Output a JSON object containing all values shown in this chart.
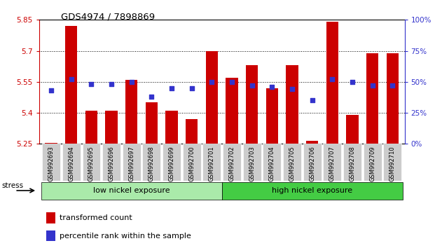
{
  "title": "GDS4974 / 7898869",
  "samples": [
    "GSM992693",
    "GSM992694",
    "GSM992695",
    "GSM992696",
    "GSM992697",
    "GSM992698",
    "GSM992699",
    "GSM992700",
    "GSM992701",
    "GSM992702",
    "GSM992703",
    "GSM992704",
    "GSM992705",
    "GSM992706",
    "GSM992707",
    "GSM992708",
    "GSM992709",
    "GSM992710"
  ],
  "transformed_count": [
    5.255,
    5.82,
    5.41,
    5.41,
    5.56,
    5.45,
    5.41,
    5.37,
    5.7,
    5.57,
    5.63,
    5.52,
    5.63,
    5.265,
    5.84,
    5.39,
    5.69,
    5.69
  ],
  "percentile_rank": [
    43,
    52,
    48,
    48,
    50,
    38,
    45,
    45,
    50,
    50,
    47,
    46,
    44,
    35,
    52,
    50,
    47,
    47
  ],
  "ylim": [
    5.25,
    5.85
  ],
  "yticks": [
    5.25,
    5.4,
    5.55,
    5.7,
    5.85
  ],
  "ytick_labels": [
    "5.25",
    "5.4",
    "5.55",
    "5.7",
    "5.85"
  ],
  "right_yticks": [
    0,
    25,
    50,
    75,
    100
  ],
  "right_ytick_labels": [
    "0%",
    "25%",
    "50%",
    "75%",
    "100%"
  ],
  "bar_color": "#cc0000",
  "dot_color": "#3333cc",
  "axis_color_left": "#cc0000",
  "axis_color_right": "#3333cc",
  "grid_color": "black",
  "bg_color": "#ffffff",
  "plot_bg_color": "#ffffff",
  "group_labels": [
    "low nickel exposure",
    "high nickel exposure"
  ],
  "low_nickel_count": 9,
  "high_nickel_count": 9,
  "group_color_low": "#aaeaaa",
  "group_color_high": "#44cc44",
  "stress_label": "stress",
  "legend_items": [
    "transformed count",
    "percentile rank within the sample"
  ]
}
